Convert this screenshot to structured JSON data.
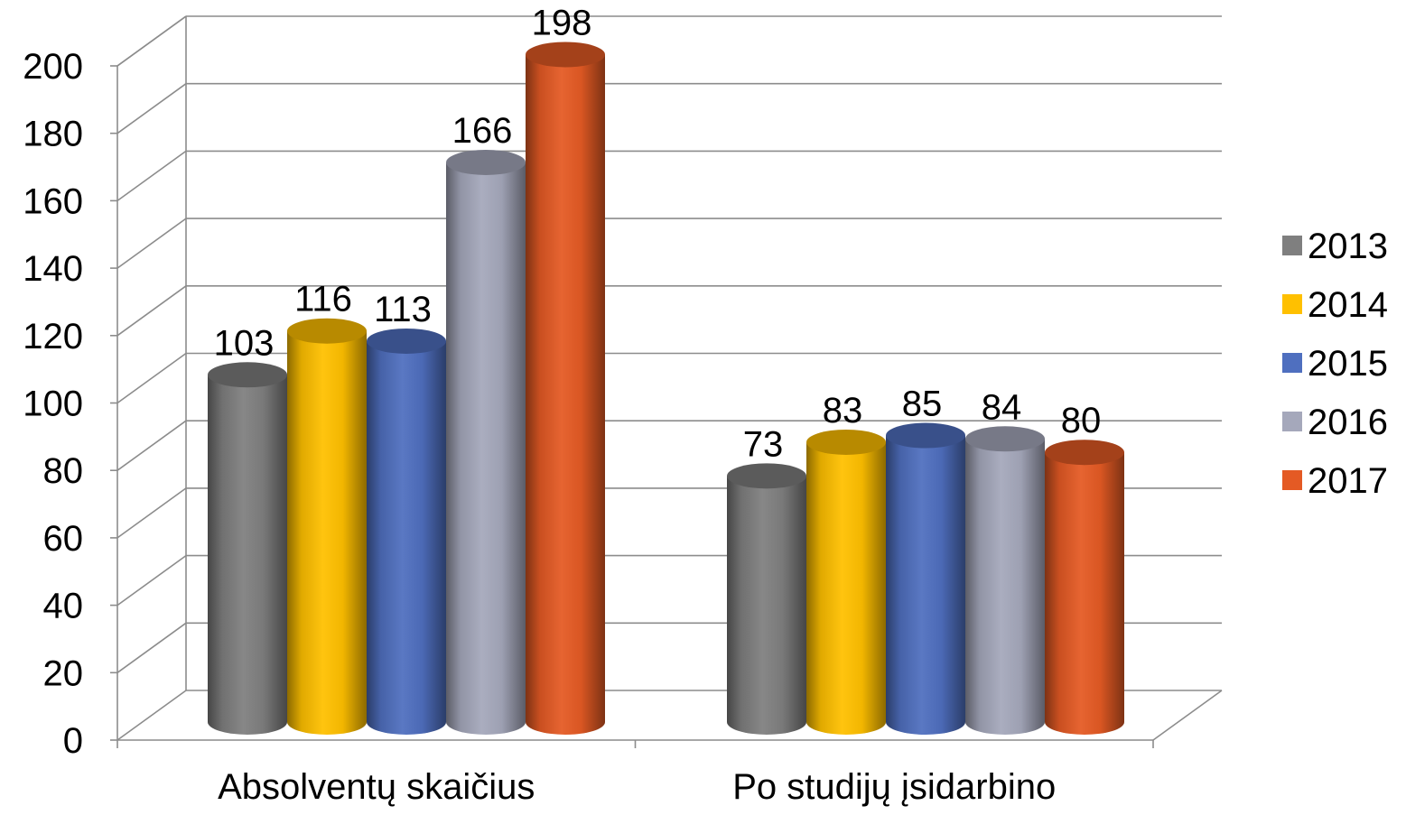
{
  "chart_data": {
    "type": "bar",
    "style": "3d-cylinder",
    "title": "",
    "xlabel": "",
    "ylabel": "",
    "categories": [
      "Absolventų skaičius",
      "Po studijų įsidarbino"
    ],
    "series": [
      {
        "name": "2013",
        "values": [
          103,
          73
        ],
        "color": "#7f7f7f"
      },
      {
        "name": "2014",
        "values": [
          116,
          83
        ],
        "color": "#ffc000"
      },
      {
        "name": "2015",
        "values": [
          113,
          85
        ],
        "color": "#4f6fbf"
      },
      {
        "name": "2016",
        "values": [
          166,
          84
        ],
        "color": "#a5a8bb"
      },
      {
        "name": "2017",
        "values": [
          198,
          80
        ],
        "color": "#e45a24"
      }
    ],
    "ylim": [
      0,
      200
    ],
    "yticks": [
      0,
      20,
      40,
      60,
      80,
      100,
      120,
      140,
      160,
      180,
      200
    ],
    "grid": true,
    "legend": "right",
    "data_labels": true
  }
}
